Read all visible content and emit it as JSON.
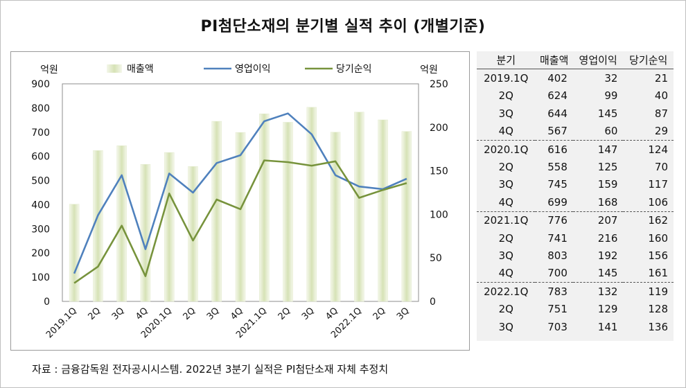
{
  "title": "PI첨단소재의 분기별 실적 추이 (개별기준)",
  "source": "자료 : 금융감독원 전자공시시스템. 2022년 3분기 실적은 PI첨단소재 자체 추정치",
  "chart_data": {
    "type": "bar+line",
    "categories": [
      "2019.1Q",
      "2Q",
      "3Q",
      "4Q",
      "2020.1Q",
      "2Q",
      "3Q",
      "4Q",
      "2021.1Q",
      "2Q",
      "3Q",
      "4Q",
      "2022.1Q",
      "2Q",
      "3Q"
    ],
    "left_unit": "억원",
    "right_unit": "억원",
    "ylim_left": [
      0,
      900
    ],
    "ylim_right": [
      0,
      250
    ],
    "yticks_left": [
      "0",
      "100",
      "200",
      "300",
      "400",
      "500",
      "600",
      "700",
      "800",
      "900"
    ],
    "yticks_right": [
      "0",
      "50",
      "100",
      "150",
      "200",
      "250"
    ],
    "legend_position": "top",
    "series": [
      {
        "name": "매출액",
        "type": "bar",
        "axis": "left",
        "color": "#d8e4bc",
        "values": [
          402,
          624,
          644,
          567,
          616,
          558,
          745,
          699,
          776,
          741,
          803,
          700,
          783,
          751,
          703
        ]
      },
      {
        "name": "영업이익",
        "type": "line",
        "axis": "right",
        "color": "#4f81bd",
        "values": [
          32,
          99,
          145,
          60,
          147,
          125,
          159,
          168,
          207,
          216,
          192,
          145,
          132,
          129,
          141
        ]
      },
      {
        "name": "당기순익",
        "type": "line",
        "axis": "right",
        "color": "#77933c",
        "values": [
          21,
          40,
          87,
          29,
          124,
          70,
          117,
          106,
          162,
          160,
          156,
          161,
          119,
          128,
          136
        ]
      }
    ]
  },
  "table": {
    "headers": [
      "분기",
      "매출액",
      "영업이익",
      "당기순익"
    ],
    "rows": [
      [
        "2019.1Q",
        "402",
        "32",
        "21"
      ],
      [
        "2Q",
        "624",
        "99",
        "40"
      ],
      [
        "3Q",
        "644",
        "145",
        "87"
      ],
      [
        "4Q",
        "567",
        "60",
        "29"
      ],
      [
        "2020.1Q",
        "616",
        "147",
        "124"
      ],
      [
        "2Q",
        "558",
        "125",
        "70"
      ],
      [
        "3Q",
        "745",
        "159",
        "117"
      ],
      [
        "4Q",
        "699",
        "168",
        "106"
      ],
      [
        "2021.1Q",
        "776",
        "207",
        "162"
      ],
      [
        "2Q",
        "741",
        "216",
        "160"
      ],
      [
        "3Q",
        "803",
        "192",
        "156"
      ],
      [
        "4Q",
        "700",
        "145",
        "161"
      ],
      [
        "2022.1Q",
        "783",
        "132",
        "119"
      ],
      [
        "2Q",
        "751",
        "129",
        "128"
      ],
      [
        "3Q",
        "703",
        "141",
        "136"
      ]
    ]
  }
}
